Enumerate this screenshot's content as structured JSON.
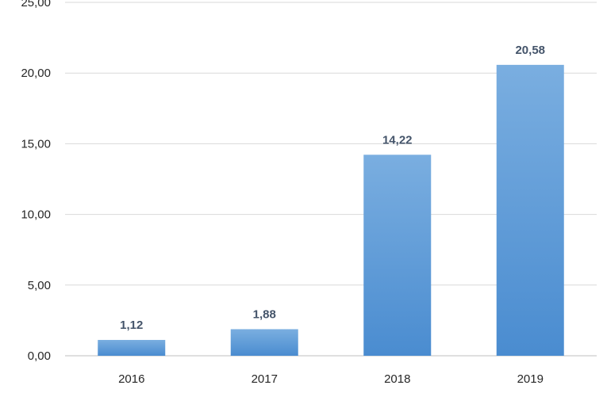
{
  "chart_data": {
    "type": "bar",
    "categories": [
      "2016",
      "2017",
      "2018",
      "2019"
    ],
    "values": [
      1.12,
      1.88,
      14.22,
      20.58
    ],
    "value_labels": [
      "1,12",
      "1,88",
      "14,22",
      "20,58"
    ],
    "yticks": [
      0,
      5,
      10,
      15,
      20,
      25
    ],
    "ytick_labels": [
      "0,00",
      "5,00",
      "10,00",
      "15,00",
      "20,00",
      "25,00"
    ],
    "ylim": [
      0,
      25
    ],
    "grid": true,
    "title": "",
    "xlabel": "",
    "ylabel": "",
    "bar_color_top": "#7aaee0",
    "bar_color_bottom": "#4a8cd0"
  }
}
